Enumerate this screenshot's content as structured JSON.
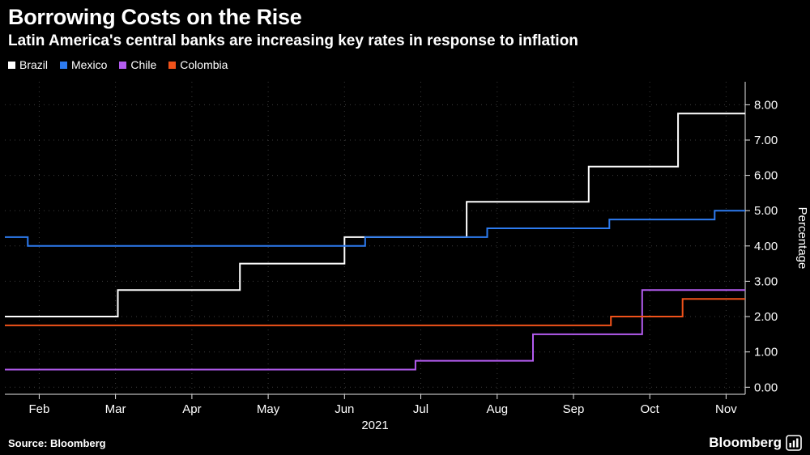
{
  "header": {
    "title": "Borrowing Costs on the Rise",
    "subtitle": "Latin America's central banks are increasing key rates in response to inflation"
  },
  "legend": {
    "items": [
      {
        "label": "Brazil",
        "color": "#ffffff"
      },
      {
        "label": "Mexico",
        "color": "#2d7bf0"
      },
      {
        "label": "Chile",
        "color": "#b45cf0"
      },
      {
        "label": "Colombia",
        "color": "#f0521a"
      }
    ]
  },
  "footer": {
    "source": "Source: Bloomberg",
    "brand": "Bloomberg"
  },
  "chart_data": {
    "type": "line",
    "step": true,
    "title": "Borrowing Costs on the Rise",
    "subtitle": "Latin America's central banks are increasing key rates in response to inflation",
    "xlabel": "2021",
    "ylabel": "Percentage",
    "x_unit": "month of 2021, decimal (e.g. 3.53 = mid-March)",
    "y_unit": "percent",
    "xlim": [
      2.05,
      11.75
    ],
    "ylim": [
      -0.2,
      8.65
    ],
    "xticks": [
      2.5,
      3.5,
      4.5,
      5.5,
      6.5,
      7.5,
      8.5,
      9.5,
      10.5,
      11.5
    ],
    "xtick_labels": [
      "Feb",
      "Mar",
      "Apr",
      "May",
      "Jun",
      "Jul",
      "Aug",
      "Sep",
      "Oct",
      "Nov"
    ],
    "yticks": [
      0,
      1,
      2,
      3,
      4,
      5,
      6,
      7,
      8
    ],
    "ytick_labels": [
      "0.00",
      "1.00",
      "2.00",
      "3.00",
      "4.00",
      "5.00",
      "6.00",
      "7.00",
      "8.00"
    ],
    "grid": true,
    "grid_color": "#3d3d3d",
    "axis_color": "#e6e6e6",
    "background": "#000000",
    "legend_position": "top-left",
    "series": [
      {
        "name": "Brazil",
        "color": "#ffffff",
        "points": [
          [
            2.05,
            2.0
          ],
          [
            3.53,
            2.75
          ],
          [
            5.13,
            3.5
          ],
          [
            6.5,
            4.25
          ],
          [
            8.1,
            5.25
          ],
          [
            9.7,
            6.25
          ],
          [
            10.87,
            7.75
          ],
          [
            11.75,
            7.75
          ]
        ]
      },
      {
        "name": "Mexico",
        "color": "#2d7bf0",
        "points": [
          [
            2.05,
            4.25
          ],
          [
            2.35,
            4.0
          ],
          [
            6.77,
            4.25
          ],
          [
            8.37,
            4.5
          ],
          [
            9.97,
            4.75
          ],
          [
            11.35,
            5.0
          ],
          [
            11.75,
            5.0
          ]
        ]
      },
      {
        "name": "Chile",
        "color": "#b45cf0",
        "points": [
          [
            2.05,
            0.5
          ],
          [
            7.43,
            0.75
          ],
          [
            8.97,
            1.5
          ],
          [
            10.4,
            2.75
          ],
          [
            11.75,
            2.75
          ]
        ]
      },
      {
        "name": "Colombia",
        "color": "#f0521a",
        "points": [
          [
            2.05,
            1.75
          ],
          [
            9.99,
            2.0
          ],
          [
            10.93,
            2.5
          ],
          [
            11.75,
            2.5
          ]
        ]
      }
    ]
  }
}
